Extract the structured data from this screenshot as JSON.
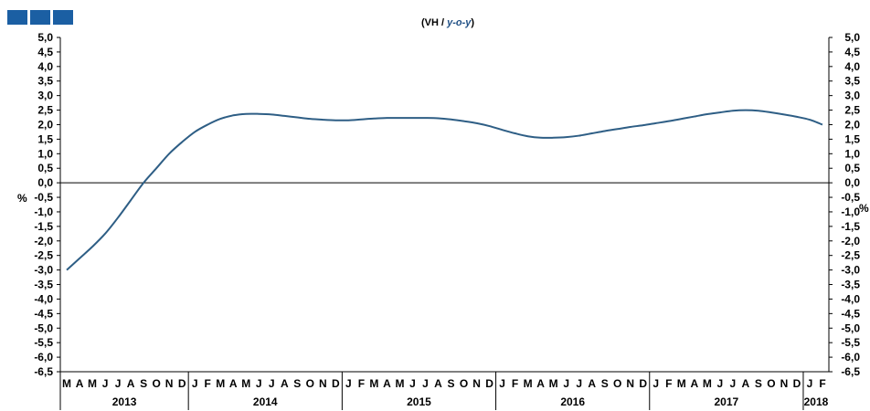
{
  "logo_color": "#1b5fa3",
  "chart_data": {
    "type": "line",
    "title_prefix": "(VH / ",
    "title_em": "y-o-y",
    "title_suffix": ")",
    "ylabel_left": "%",
    "ylabel_right": "%",
    "ylim": [
      -6.5,
      5.0
    ],
    "ytick_step": 0.5,
    "month_labels": [
      "M",
      "A",
      "M",
      "J",
      "J",
      "A",
      "S",
      "O",
      "N",
      "D",
      "J",
      "F",
      "M",
      "A",
      "M",
      "J",
      "J",
      "A",
      "S",
      "O",
      "N",
      "D",
      "J",
      "F",
      "M",
      "A",
      "M",
      "J",
      "J",
      "A",
      "S",
      "O",
      "N",
      "D",
      "J",
      "F",
      "M",
      "A",
      "M",
      "J",
      "J",
      "A",
      "S",
      "O",
      "N",
      "D",
      "J",
      "F",
      "M",
      "A",
      "M",
      "J",
      "J",
      "A",
      "S",
      "O",
      "N",
      "D",
      "J",
      "F"
    ],
    "years": [
      {
        "label": "2013",
        "start": 0,
        "end": 10
      },
      {
        "label": "2014",
        "start": 10,
        "end": 22
      },
      {
        "label": "2015",
        "start": 22,
        "end": 34
      },
      {
        "label": "2016",
        "start": 34,
        "end": 46
      },
      {
        "label": "2017",
        "start": 46,
        "end": 58
      },
      {
        "label": "2018",
        "start": 58,
        "end": 60
      }
    ],
    "line_color": "#2e5e85",
    "series": [
      {
        "values": [
          -3.0,
          -2.6,
          -2.2,
          -1.75,
          -1.2,
          -0.6,
          0.0,
          0.5,
          1.0,
          1.4,
          1.75,
          2.0,
          2.2,
          2.32,
          2.37,
          2.37,
          2.35,
          2.3,
          2.25,
          2.2,
          2.17,
          2.15,
          2.15,
          2.18,
          2.21,
          2.23,
          2.23,
          2.23,
          2.23,
          2.22,
          2.18,
          2.12,
          2.05,
          1.95,
          1.82,
          1.7,
          1.6,
          1.55,
          1.55,
          1.57,
          1.62,
          1.7,
          1.78,
          1.85,
          1.92,
          1.98,
          2.05,
          2.12,
          2.2,
          2.28,
          2.36,
          2.42,
          2.48,
          2.5,
          2.48,
          2.42,
          2.35,
          2.27,
          2.17,
          2.0
        ]
      }
    ]
  }
}
